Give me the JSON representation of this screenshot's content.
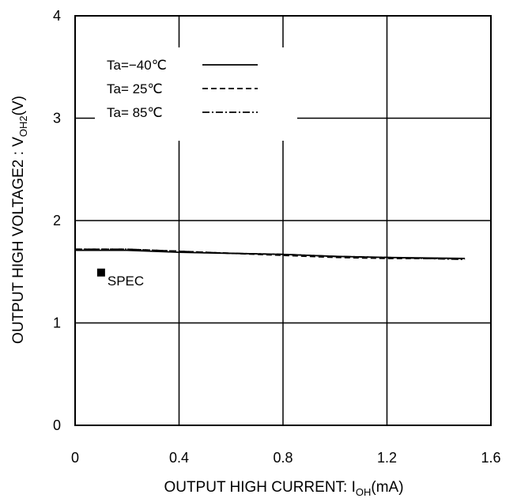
{
  "chart_data": {
    "type": "line",
    "xlabel": {
      "main": "OUTPUT HIGH CURRENT: I",
      "sub": "OH",
      "tail": "(mA)"
    },
    "ylabel": {
      "main": "OUTPUT HIGH VOLTAGE2 : V",
      "sub": "OH2",
      "tail": "(V)"
    },
    "xlim": [
      0,
      1.6
    ],
    "ylim": [
      0,
      4
    ],
    "xticks": [
      "0",
      "0.4",
      "0.8",
      "1.2",
      "1.6"
    ],
    "yticks": [
      "0",
      "1",
      "2",
      "3",
      "4"
    ],
    "grid": true,
    "legend_position": "top-left",
    "series": [
      {
        "name": "Ta=−40℃",
        "dash": "solid",
        "x": [
          0,
          0.2,
          0.4,
          0.6,
          0.8,
          1.0,
          1.2,
          1.5
        ],
        "y": [
          1.71,
          1.71,
          1.69,
          1.68,
          1.67,
          1.65,
          1.64,
          1.63
        ]
      },
      {
        "name": "Ta= 25℃",
        "dash": "dash",
        "x": [
          0,
          0.2,
          0.4,
          0.6,
          0.8,
          1.0,
          1.2,
          1.5
        ],
        "y": [
          1.72,
          1.72,
          1.7,
          1.68,
          1.66,
          1.64,
          1.63,
          1.63
        ]
      },
      {
        "name": "Ta= 85℃",
        "dash": "dashdot",
        "x": [
          0,
          0.2,
          0.4,
          0.6,
          0.8,
          1.0,
          1.2,
          1.5
        ],
        "y": [
          1.72,
          1.72,
          1.7,
          1.68,
          1.67,
          1.65,
          1.64,
          1.62
        ]
      }
    ],
    "annotations": [
      {
        "label": "SPEC",
        "x": 0.1,
        "y": 1.5
      }
    ]
  }
}
